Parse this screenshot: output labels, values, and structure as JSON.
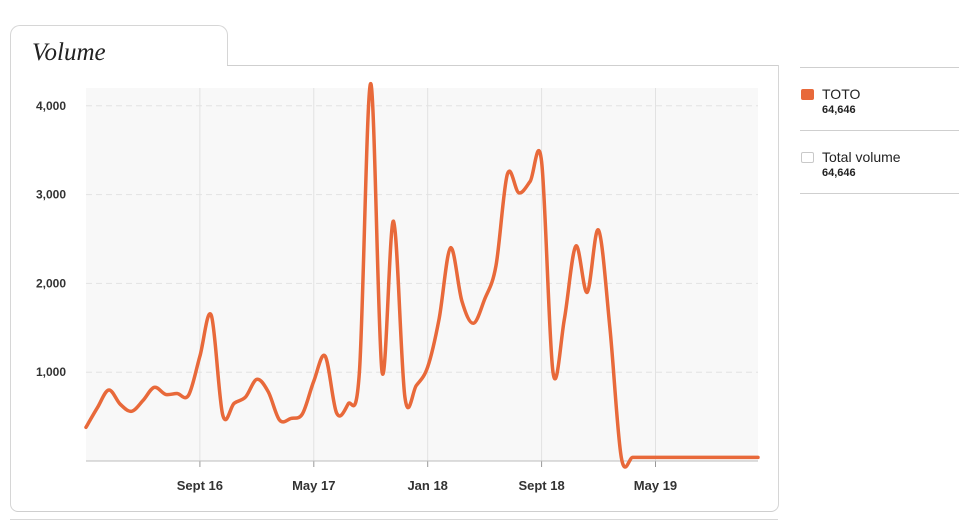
{
  "panel": {
    "title": "Volume"
  },
  "legend": [
    {
      "name": "TOTO",
      "value": "64,646",
      "color": "#E8693A"
    },
    {
      "name": "Total volume",
      "value": "64,646",
      "color": "#ffffff"
    }
  ],
  "chart_data": {
    "type": "line",
    "ylim": [
      0,
      4200
    ],
    "y_ticks": [
      1000,
      2000,
      3000,
      4000
    ],
    "y_tick_labels": [
      "1,000",
      "2,000",
      "3,000",
      "4,000"
    ],
    "x_range": [
      0,
      59
    ],
    "x_ticks": [
      10,
      20,
      30,
      40,
      50
    ],
    "x_tick_labels": [
      "Sept 16",
      "May 17",
      "Jan 18",
      "Sept 18",
      "May 19"
    ],
    "grid": true,
    "series": [
      {
        "name": "TOTO",
        "color": "#E8693A",
        "x": [
          0,
          1,
          2,
          3,
          4,
          5,
          6,
          7,
          8,
          9,
          10,
          11,
          12,
          13,
          14,
          15,
          16,
          17,
          18,
          19,
          20,
          21,
          22,
          23,
          24,
          25,
          26,
          27,
          28,
          29,
          30,
          31,
          32,
          33,
          34,
          35,
          36,
          37,
          38,
          39,
          40,
          41,
          42,
          43,
          44,
          45,
          46,
          47,
          48,
          49,
          50,
          51,
          52,
          53,
          54,
          55,
          56,
          57,
          58,
          59
        ],
        "y": [
          380,
          600,
          800,
          640,
          560,
          680,
          830,
          750,
          760,
          740,
          1180,
          1640,
          520,
          650,
          720,
          920,
          780,
          460,
          480,
          530,
          900,
          1180,
          540,
          640,
          1000,
          4250,
          1000,
          2700,
          720,
          850,
          1060,
          1600,
          2400,
          1800,
          1550,
          1820,
          2200,
          3230,
          3020,
          3150,
          3370,
          1000,
          1600,
          2420,
          1900,
          2600,
          1500,
          40,
          40,
          40,
          40,
          40,
          40,
          40,
          40,
          40,
          40,
          40,
          40,
          40
        ]
      }
    ]
  }
}
